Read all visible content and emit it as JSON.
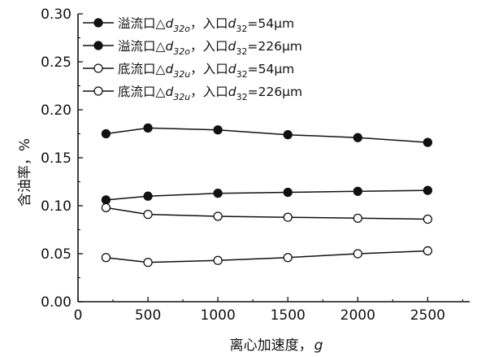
{
  "chart_data": {
    "type": "line",
    "title": "",
    "xlabel_main": "离心加速度，",
    "xlabel_var": "g",
    "ylabel": "含油率，%",
    "xlim": [
      0,
      2800
    ],
    "ylim": [
      0,
      0.3
    ],
    "x_ticks": [
      0,
      500,
      1000,
      1500,
      2000,
      2500
    ],
    "x_tick_labels": [
      "0",
      "500",
      "1000",
      "1500",
      "2000",
      "2500"
    ],
    "y_ticks": [
      0.0,
      0.05,
      0.1,
      0.15,
      0.2,
      0.25,
      0.3
    ],
    "y_tick_labels": [
      "0.00",
      "0.05",
      "0.10",
      "0.15",
      "0.20",
      "0.25",
      "0.30"
    ],
    "grid": false,
    "legend_position": "top-left",
    "x": [
      200,
      500,
      1000,
      1500,
      2000,
      2500
    ],
    "series": [
      {
        "legend_prefix": "溢流口",
        "legend_delta": "△",
        "legend_var": "d",
        "legend_sub": "32o",
        "legend_mid": "，入口",
        "legend_var2": "d",
        "legend_sub2": "32",
        "legend_suffix": "=54μm",
        "marker": "filled",
        "color": "#111111",
        "values": [
          0.106,
          0.11,
          0.113,
          0.114,
          0.115,
          0.116
        ]
      },
      {
        "legend_prefix": "溢流口",
        "legend_delta": "△",
        "legend_var": "d",
        "legend_sub": "32o",
        "legend_mid": "，入口",
        "legend_var2": "d",
        "legend_sub2": "32",
        "legend_suffix": "=226μm",
        "marker": "filled",
        "color": "#111111",
        "values": [
          0.175,
          0.181,
          0.179,
          0.174,
          0.171,
          0.166
        ]
      },
      {
        "legend_prefix": "底流口",
        "legend_delta": "△",
        "legend_var": "d",
        "legend_sub": "32u",
        "legend_mid": "，入口",
        "legend_var2": "d",
        "legend_sub2": "32",
        "legend_suffix": "=54μm",
        "marker": "open",
        "color": "#111111",
        "values": [
          0.098,
          0.091,
          0.089,
          0.088,
          0.087,
          0.086
        ]
      },
      {
        "legend_prefix": "底流口",
        "legend_delta": "△",
        "legend_var": "d",
        "legend_sub": "32u",
        "legend_mid": "，入口",
        "legend_var2": "d",
        "legend_sub2": "32",
        "legend_suffix": "=226μm",
        "marker": "open",
        "color": "#111111",
        "values": [
          0.046,
          0.041,
          0.043,
          0.046,
          0.05,
          0.053
        ]
      }
    ]
  }
}
